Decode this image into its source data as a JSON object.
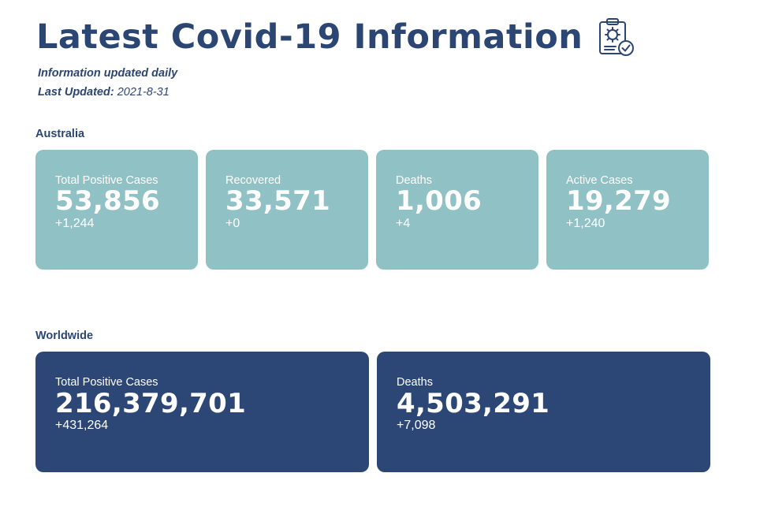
{
  "header": {
    "title": "Latest Covid-19 Information",
    "title_icon": "clipboard-virus-check-icon",
    "subtitle": "Information updated daily",
    "last_updated_label": "Last Updated:",
    "last_updated_value": "2021-8-31"
  },
  "australia": {
    "label": "Australia",
    "cards": [
      {
        "label": "Total Positive Cases",
        "value": "53,856",
        "change": "+1,244"
      },
      {
        "label": "Recovered",
        "value": "33,571",
        "change": "+0"
      },
      {
        "label": "Deaths",
        "value": "1,006",
        "change": "+4"
      },
      {
        "label": "Active Cases",
        "value": "19,279",
        "change": "+1,240"
      }
    ]
  },
  "worldwide": {
    "label": "Worldwide",
    "cards": [
      {
        "label": "Total Positive Cases",
        "value": "216,379,701",
        "change": "+431,264"
      },
      {
        "label": "Deaths",
        "value": "4,503,291",
        "change": "+7,098"
      }
    ]
  },
  "colors": {
    "primary": "#2c4674",
    "card_light": "#90c1c5",
    "card_dark": "#2c4675",
    "text_on_card": "#ffffff"
  }
}
